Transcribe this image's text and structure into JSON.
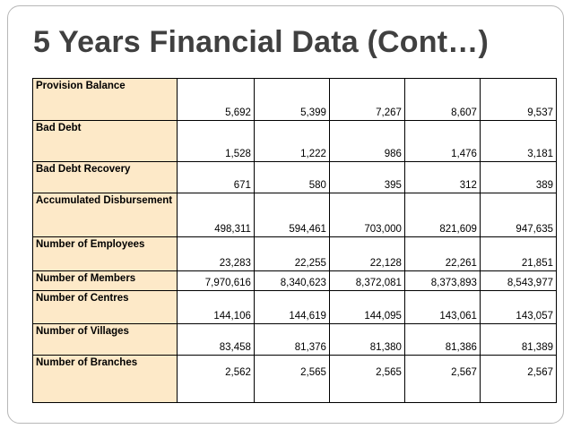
{
  "title": "5 Years Financial Data (Cont…)",
  "rows": [
    {
      "label": "Provision Balance",
      "values": [
        "5,692",
        "5,399",
        "7,267",
        "8,607",
        "9,537"
      ]
    },
    {
      "label": "Bad Debt",
      "values": [
        "1,528",
        "1,222",
        "986",
        "1,476",
        "3,181"
      ]
    },
    {
      "label": "Bad Debt Recovery",
      "values": [
        "671",
        "580",
        "395",
        "312",
        "389"
      ]
    },
    {
      "label": "Accumulated Disbursement",
      "values": [
        "498,311",
        "594,461",
        "703,000",
        "821,609",
        "947,635"
      ]
    },
    {
      "label": "Number of Employees",
      "values": [
        "23,283",
        "22,255",
        "22,128",
        "22,261",
        "21,851"
      ]
    },
    {
      "label": "Number of Members",
      "values": [
        "7,970,616",
        "8,340,623",
        "8,372,081",
        "8,373,893",
        "8,543,977"
      ]
    },
    {
      "label": "Number of Centres",
      "values": [
        "144,106",
        "144,619",
        "144,095",
        "143,061",
        "143,057"
      ]
    },
    {
      "label": "Number of Villages",
      "values": [
        "83,458",
        "81,376",
        "81,380",
        "81,386",
        "81,389"
      ]
    },
    {
      "label": "Number of Branches",
      "values": [
        "2,562",
        "2,565",
        "2,565",
        "2,567",
        "2,567"
      ]
    }
  ],
  "colors": {
    "label_bg": "#fde9c8",
    "title": "#404040",
    "border": "#000000"
  }
}
